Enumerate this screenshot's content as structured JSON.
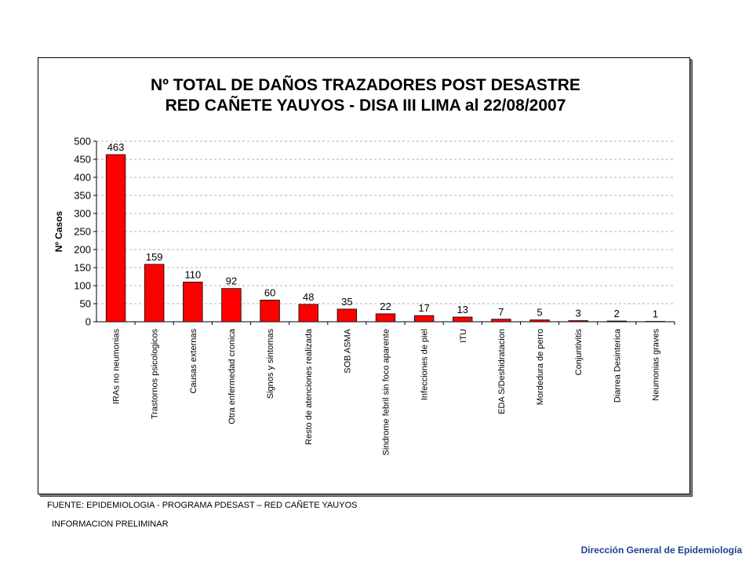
{
  "chart_data": {
    "type": "bar",
    "title_lines": [
      "Nº TOTAL  DE DAÑOS TRAZADORES POST DESASTRE",
      "RED CAÑETE YAUYOS - DISA III LIMA al 22/08/2007"
    ],
    "ylabel": "Nº Casos",
    "ylim": [
      0,
      500
    ],
    "yticks": [
      0,
      50,
      100,
      150,
      200,
      250,
      300,
      350,
      400,
      450,
      500
    ],
    "grid": "dashed horizontal",
    "bar_color": "#ff0000",
    "categories": [
      "IRAs no neumonias",
      "Trastornos psicologicos",
      "Causas externas",
      "Otra enfermedad cronica",
      "Signos y sintomas",
      "Resto de atenciones realizada",
      "SOB ASMA",
      "Sindrome febril sin foco aparente",
      "Infecciones de piel",
      "ITU",
      "EDA S/Deshidratacion",
      "Mordedura de perro",
      "Conjuntivitis",
      "Diarrea Desinterica",
      "Neumonias graves"
    ],
    "values": [
      463,
      159,
      110,
      92,
      60,
      48,
      35,
      22,
      17,
      13,
      7,
      5,
      3,
      2,
      1
    ]
  },
  "footer": {
    "source": "FUENTE:  EPIDEMIOLOGIA - PROGRAMA PDESAST – RED CAÑETE YAUYOS",
    "preliminary": "INFORMACION PRELIMINAR",
    "organization": "Dirección General de Epidemiología"
  }
}
